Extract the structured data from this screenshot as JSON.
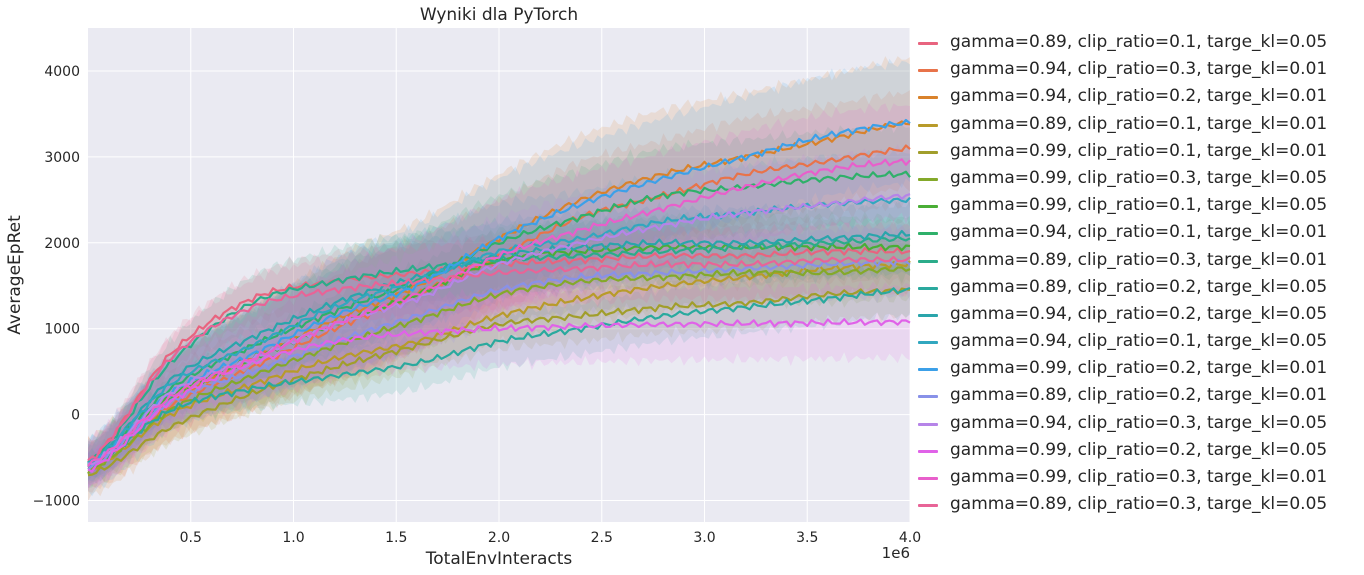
{
  "chart_data": {
    "type": "line",
    "title": "Wyniki dla PyTorch",
    "xlabel": "TotalEnvInteracts",
    "ylabel": "AverageEpRet",
    "x_offset_label": "1e6",
    "xlim": [
      0.0,
      4.0
    ],
    "ylim": [
      -1250,
      4500
    ],
    "xticks": [
      0.5,
      1.0,
      1.5,
      2.0,
      2.5,
      3.0,
      3.5,
      4.0
    ],
    "xtick_labels": [
      "0.5",
      "1.0",
      "1.5",
      "2.0",
      "2.5",
      "3.0",
      "3.5",
      "4.0"
    ],
    "yticks": [
      -1000,
      0,
      1000,
      2000,
      3000,
      4000
    ],
    "ytick_labels": [
      "−1000",
      "0",
      "1000",
      "2000",
      "3000",
      "4000"
    ],
    "grid": true,
    "legend_position": "outside-right",
    "x": [
      0.0,
      0.25,
      0.5,
      0.75,
      1.0,
      1.5,
      2.0,
      2.5,
      3.0,
      3.5,
      4.0
    ],
    "series": [
      {
        "name": "gamma=0.89, clip_ratio=0.1, targe_kl=0.05",
        "color": "#e8647f",
        "values": [
          -550,
          700,
          1350,
          1550,
          1650,
          1750,
          1800,
          1850,
          1850,
          1900,
          1900
        ],
        "band": 350
      },
      {
        "name": "gamma=0.94, clip_ratio=0.3, targe_kl=0.01",
        "color": "#e8734a",
        "values": [
          -600,
          100,
          550,
          1000,
          1400,
          1850,
          2300,
          2550,
          2800,
          2950,
          3100
        ],
        "band": 650
      },
      {
        "name": "gamma=0.94, clip_ratio=0.2, targe_kl=0.01",
        "color": "#d9822b",
        "values": [
          -620,
          150,
          650,
          1100,
          1500,
          2050,
          2500,
          2800,
          3000,
          3200,
          3400
        ],
        "band": 750
      },
      {
        "name": "gamma=0.89, clip_ratio=0.1, targe_kl=0.01",
        "color": "#b89b2a",
        "values": [
          -650,
          0,
          350,
          650,
          850,
          1150,
          1350,
          1500,
          1600,
          1700,
          1750
        ],
        "band": 300
      },
      {
        "name": "gamma=0.99, clip_ratio=0.1, targe_kl=0.01",
        "color": "#a19e2b",
        "values": [
          -700,
          -150,
          250,
          550,
          800,
          1050,
          1150,
          1250,
          1300,
          1400,
          1450
        ],
        "band": 300
      },
      {
        "name": "gamma=0.99, clip_ratio=0.3, targe_kl=0.05",
        "color": "#84a92a",
        "values": [
          -650,
          50,
          450,
          800,
          1100,
          1400,
          1550,
          1600,
          1650,
          1650,
          1700
        ],
        "band": 350
      },
      {
        "name": "gamma=0.99, clip_ratio=0.1, targe_kl=0.05",
        "color": "#4aae36",
        "values": [
          -620,
          200,
          650,
          1050,
          1400,
          1800,
          1900,
          1950,
          1950,
          1950,
          1950
        ],
        "band": 350
      },
      {
        "name": "gamma=0.94, clip_ratio=0.1, targe_kl=0.01",
        "color": "#2fb06a",
        "values": [
          -580,
          300,
          800,
          1200,
          1550,
          2000,
          2300,
          2550,
          2650,
          2750,
          2800
        ],
        "band": 550
      },
      {
        "name": "gamma=0.89, clip_ratio=0.3, targe_kl=0.01",
        "color": "#2bac8a",
        "values": [
          -560,
          600,
          1300,
          1550,
          1700,
          1800,
          1850,
          1900,
          1950,
          2000,
          2050
        ],
        "band": 400
      },
      {
        "name": "gamma=0.89, clip_ratio=0.2, targe_kl=0.05",
        "color": "#2aa99e",
        "values": [
          -600,
          50,
          300,
          450,
          600,
          850,
          1000,
          1150,
          1250,
          1350,
          1450
        ],
        "band": 300
      },
      {
        "name": "gamma=0.94, clip_ratio=0.2, targe_kl=0.05",
        "color": "#2aa5ab",
        "values": [
          -580,
          400,
          900,
          1300,
          1600,
          1850,
          1950,
          2000,
          2000,
          2050,
          2100
        ],
        "band": 400
      },
      {
        "name": "gamma=0.94, clip_ratio=0.1, targe_kl=0.05",
        "color": "#31a7bf",
        "values": [
          -560,
          350,
          800,
          1250,
          1550,
          1900,
          2050,
          2250,
          2350,
          2450,
          2500
        ],
        "band": 550
      },
      {
        "name": "gamma=0.99, clip_ratio=0.2, targe_kl=0.01",
        "color": "#3ca0e8",
        "values": [
          -600,
          250,
          700,
          1150,
          1500,
          2050,
          2450,
          2750,
          3000,
          3250,
          3400
        ],
        "band": 700
      },
      {
        "name": "gamma=0.89, clip_ratio=0.2, targe_kl=0.01",
        "color": "#8891e8",
        "values": [
          -620,
          150,
          500,
          850,
          1150,
          1450,
          1600,
          1650,
          1700,
          1750,
          1780
        ],
        "band": 400
      },
      {
        "name": "gamma=0.94, clip_ratio=0.3, targe_kl=0.05",
        "color": "#b684e8",
        "values": [
          -600,
          250,
          650,
          1050,
          1350,
          1750,
          2000,
          2200,
          2350,
          2450,
          2550
        ],
        "band": 550
      },
      {
        "name": "gamma=0.99, clip_ratio=0.2, targe_kl=0.05",
        "color": "#e062e8",
        "values": [
          -650,
          150,
          600,
          850,
          950,
          1000,
          1030,
          1050,
          1060,
          1070,
          1080
        ],
        "band": 420
      },
      {
        "name": "gamma=0.99, clip_ratio=0.3, targe_kl=0.01",
        "color": "#e85fcb",
        "values": [
          -580,
          200,
          650,
          1050,
          1400,
          1850,
          2150,
          2400,
          2650,
          2850,
          2950
        ],
        "band": 650
      },
      {
        "name": "gamma=0.89, clip_ratio=0.3, targe_kl=0.05",
        "color": "#e86497",
        "values": [
          -540,
          650,
          1250,
          1450,
          1550,
          1650,
          1700,
          1750,
          1750,
          1800,
          1800
        ],
        "band": 400
      }
    ]
  }
}
